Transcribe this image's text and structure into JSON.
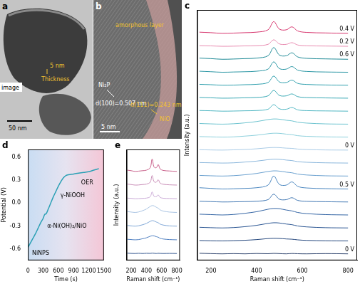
{
  "images": [
    {
      "panel": "a",
      "texts": [
        {
          "text": "Thickness",
          "color": "#f2c230"
        },
        {
          "text": "5 nm",
          "color": "#f2c230"
        },
        {
          "text": "50 nm",
          "color": "#000000"
        },
        {
          "text": "image",
          "color": "#000000"
        }
      ]
    },
    {
      "panel": "b",
      "texts": [
        {
          "text": "amorphous layer",
          "color": "#f2c230"
        },
        {
          "text": "Ni₂P",
          "color": "#ffffff"
        },
        {
          "text": "d(100)=0.507 nm",
          "color": "#ffffff"
        },
        {
          "text": "d(111)=0.243 nm",
          "color": "#f2c230"
        },
        {
          "text": "NiO",
          "color": "#f2c230"
        },
        {
          "text": "5 nm",
          "color": "#ffffff"
        }
      ]
    }
  ],
  "chart_data": [
    {
      "panel": "c",
      "type": "line",
      "x_label": "Raman shift (cm⁻¹)",
      "y_label": "Intensity (a.u.)",
      "tick_labels": "x",
      "xlim": [
        140,
        840
      ],
      "xticks": [
        200,
        400,
        600,
        800
      ],
      "ylim": [
        -0.5,
        18.8
      ],
      "x": [
        150,
        200,
        250,
        300,
        350,
        400,
        450,
        475,
        500,
        530,
        555,
        580,
        620,
        700,
        800
      ],
      "series": [
        {
          "name": "0 V",
          "color": "#1d3461",
          "values": [
            0.05,
            0.02,
            0,
            0.02,
            0,
            0.03,
            0.01,
            0.04,
            0.02,
            0,
            0.03,
            0.01,
            0,
            0.02,
            0
          ]
        },
        {
          "color": "#23467c",
          "values": [
            1.03,
            1.01,
            1,
            1.02,
            1.05,
            1.1,
            1.18,
            1.2,
            1.19,
            1.15,
            1.13,
            1.08,
            1.04,
            1.01,
            1
          ]
        },
        {
          "color": "#2a5592",
          "values": [
            2.05,
            2.02,
            2,
            2.03,
            2.1,
            2.2,
            2.35,
            2.4,
            2.38,
            2.3,
            2.25,
            2.15,
            2.08,
            2.02,
            2
          ]
        },
        {
          "color": "#3465a4",
          "values": [
            3.06,
            3.03,
            3,
            3.04,
            3.13,
            3.25,
            3.44,
            3.5,
            3.48,
            3.38,
            3.31,
            3.19,
            3.1,
            3.03,
            3
          ]
        },
        {
          "color": "#3f76b2",
          "values": [
            4.06,
            4.03,
            4,
            4.01,
            4.03,
            4.06,
            4.18,
            4.6,
            4.21,
            4.18,
            4.33,
            4.12,
            4.05,
            4.02,
            4
          ]
        },
        {
          "name": "0.5 V",
          "color": "#4a86bf",
          "values": [
            5.1,
            5.05,
            5,
            5.02,
            5.05,
            5.1,
            5.3,
            6,
            5.35,
            5.3,
            5.55,
            5.2,
            5.08,
            5.03,
            5
          ]
        },
        {
          "color": "#6aa0cf",
          "values": [
            6.05,
            6.02,
            6,
            6.03,
            6.1,
            6.2,
            6.35,
            6.4,
            6.38,
            6.3,
            6.25,
            6.15,
            6.08,
            6.02,
            6
          ]
        },
        {
          "color": "#8bb7dc",
          "values": [
            7.04,
            7.02,
            7,
            7.02,
            7.08,
            7.15,
            7.26,
            7.3,
            7.29,
            7.23,
            7.19,
            7.11,
            7.06,
            7.02,
            7
          ]
        },
        {
          "name": "0 V",
          "color": "#a9cbe6",
          "values": [
            8.03,
            8.01,
            8,
            8.02,
            8.05,
            8.1,
            8.18,
            8.2,
            8.19,
            8.15,
            8.13,
            8.08,
            8.04,
            8.01,
            8
          ]
        },
        {
          "color": "#8dd0dc",
          "values": [
            9.04,
            9.02,
            9,
            9.02,
            9.08,
            9.15,
            9.26,
            9.3,
            9.29,
            9.23,
            9.19,
            9.11,
            9.06,
            9.02,
            9
          ]
        },
        {
          "color": "#6cc3cf",
          "values": [
            10.05,
            10.02,
            10,
            10.03,
            10.1,
            10.2,
            10.35,
            10.4,
            10.38,
            10.3,
            10.25,
            10.15,
            10.08,
            10.02,
            10
          ]
        },
        {
          "color": "#4fb6c2",
          "values": [
            11.05,
            11.03,
            11,
            11.01,
            11.03,
            11.05,
            11.15,
            11.5,
            11.18,
            11.15,
            11.28,
            11.1,
            11.04,
            11.02,
            11
          ]
        },
        {
          "color": "#3aa9b5",
          "values": [
            12.06,
            12.03,
            12,
            12.01,
            12.03,
            12.06,
            12.18,
            12.6,
            12.21,
            12.18,
            12.33,
            12.12,
            12.05,
            12.02,
            12
          ]
        },
        {
          "color": "#2f9fad",
          "values": [
            13.07,
            13.04,
            13,
            13.01,
            13.04,
            13.07,
            13.21,
            13.7,
            13.25,
            13.21,
            13.39,
            13.14,
            13.06,
            13.02,
            13
          ]
        },
        {
          "color": "#2a96a4",
          "values": [
            14.08,
            14.04,
            14,
            14.02,
            14.04,
            14.08,
            14.24,
            14.8,
            14.28,
            14.24,
            14.44,
            14.16,
            14.06,
            14.02,
            14
          ]
        },
        {
          "name": "0.6 V",
          "color": "#1e8a96",
          "values": [
            15.09,
            15.05,
            15,
            15.02,
            15.05,
            15.09,
            15.27,
            15.9,
            15.32,
            15.27,
            15.5,
            15.18,
            15.07,
            15.03,
            15
          ]
        },
        {
          "name": "0.2 V",
          "color": "#e88bb0",
          "values": [
            16.05,
            16.03,
            16,
            16.01,
            16.03,
            16.05,
            16.15,
            16.5,
            16.18,
            16.15,
            16.28,
            16.1,
            16.04,
            16.02,
            16
          ]
        },
        {
          "name": "0.4 V",
          "color": "#d6336c",
          "values": [
            17.09,
            17.05,
            17,
            17.02,
            17.05,
            17.09,
            17.27,
            17.9,
            17.32,
            17.27,
            17.5,
            17.18,
            17.07,
            17.03,
            17
          ]
        }
      ]
    },
    {
      "panel": "d",
      "type": "line",
      "x_label": "Time (s)",
      "y_label": "Potential (V)",
      "xlim": [
        0,
        1500
      ],
      "xticks": [
        0,
        300,
        600,
        900,
        1200,
        1500
      ],
      "ylim": [
        -0.75,
        0.7
      ],
      "yticks": [
        -0.6,
        -0.3,
        {
          "value": 0,
          "label": "0.0"
        },
        0.3,
        0.6
      ],
      "x": [
        0,
        50,
        100,
        150,
        200,
        250,
        300,
        330,
        360,
        400,
        450,
        500,
        550,
        600,
        650,
        700,
        750,
        800,
        900,
        1000,
        1100,
        1200,
        1300,
        1400
      ],
      "values": [
        -0.58,
        -0.52,
        -0.46,
        -0.4,
        -0.33,
        -0.26,
        -0.2,
        -0.15,
        -0.14,
        -0.08,
        0,
        0.08,
        0.15,
        0.22,
        0.28,
        0.33,
        0.36,
        0.37,
        0.38,
        0.39,
        0.4,
        0.41,
        0.43,
        0.45
      ],
      "color": "#2ba0b5",
      "annotations": [
        {
          "text": "OER",
          "x": 1050,
          "y": 0.26
        },
        {
          "text": "γ-NiOOH",
          "x": 640,
          "y": 0.1
        },
        {
          "text": "α-Ni(OH)₂/NiO",
          "x": 380,
          "y": -0.3
        },
        {
          "text": "NiNPS",
          "x": 80,
          "y": -0.66
        }
      ]
    },
    {
      "panel": "e",
      "type": "line",
      "x_label": "Raman shift (cm⁻¹)",
      "y_label": "Intensity (a.u.)",
      "tick_labels": "x",
      "xlim": [
        140,
        840
      ],
      "xticks": [
        200,
        400,
        600,
        800
      ],
      "ylim": [
        -0.5,
        7.6
      ],
      "x": [
        150,
        200,
        250,
        300,
        350,
        400,
        450,
        475,
        500,
        530,
        555,
        580,
        620,
        700,
        800
      ],
      "series": [
        {
          "color": "#2a4f8a",
          "values": [
            0.03,
            0.01,
            0,
            0.02,
            0,
            0.02,
            0.01,
            0.03,
            0.02,
            0,
            0.02,
            0.01,
            0,
            0.01,
            0
          ]
        },
        {
          "color": "#4f7fc0",
          "values": [
            1.04,
            1.02,
            1,
            1.02,
            1.08,
            1.15,
            1.26,
            1.3,
            1.29,
            1.23,
            1.19,
            1.11,
            1.06,
            1.02,
            1
          ]
        },
        {
          "color": "#7ea6d6",
          "values": [
            2.05,
            2.02,
            2,
            2.03,
            2.1,
            2.2,
            2.35,
            2.4,
            2.38,
            2.3,
            2.25,
            2.15,
            2.08,
            2.02,
            2
          ]
        },
        {
          "color": "#a8c3e2",
          "values": [
            3.06,
            3.03,
            3,
            3.04,
            3.13,
            3.25,
            3.44,
            3.5,
            3.48,
            3.38,
            3.31,
            3.19,
            3.1,
            3.03,
            3
          ]
        },
        {
          "color": "#c9a9d6",
          "values": [
            4.05,
            4.03,
            4,
            4.01,
            4.03,
            4.05,
            4.15,
            4.5,
            4.18,
            4.15,
            4.28,
            4.1,
            4.04,
            4.02,
            4
          ]
        },
        {
          "color": "#c98fb8",
          "values": [
            5.07,
            5.04,
            5,
            5.01,
            5.04,
            5.07,
            5.21,
            5.7,
            5.25,
            5.21,
            5.39,
            5.14,
            5.06,
            5.02,
            5
          ]
        },
        {
          "color": "#c8608a",
          "values": [
            6.09,
            6.05,
            6,
            6.02,
            6.05,
            6.09,
            6.27,
            6.9,
            6.32,
            6.27,
            6.5,
            6.18,
            6.07,
            6.03,
            6
          ]
        }
      ]
    }
  ]
}
